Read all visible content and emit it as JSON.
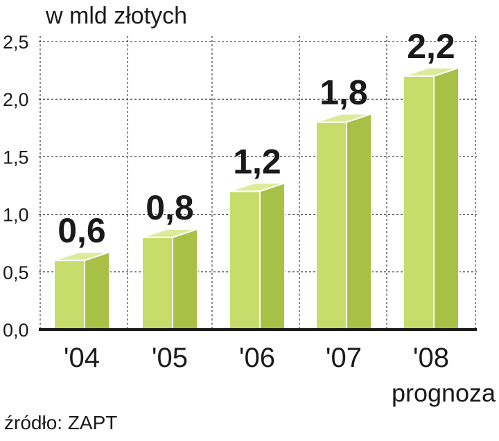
{
  "chart_data": {
    "type": "bar",
    "title": "",
    "unit_label": "w mld złotych",
    "categories": [
      "'04",
      "'05",
      "'06",
      "'07",
      "'08"
    ],
    "values": [
      0.6,
      0.8,
      1.2,
      1.8,
      2.2
    ],
    "value_labels": [
      "0,6",
      "0,8",
      "1,2",
      "1,8",
      "2,2"
    ],
    "category_notes": [
      "",
      "",
      "",
      "",
      "prognoza"
    ],
    "ylim": [
      0,
      2.5
    ],
    "yticks": [
      0.0,
      0.5,
      1.0,
      1.5,
      2.0,
      2.5
    ],
    "ytick_labels": [
      "0,0",
      "0,5",
      "1,0",
      "1,5",
      "2,0",
      "2,5"
    ],
    "grid": true,
    "legend": "none",
    "colors": {
      "bar_front": "#c7dc6b",
      "bar_side": "#a9c046",
      "bar_top": "#dcea9a",
      "grid": "#1a1a1a",
      "axis": "#1a1a1a"
    },
    "source": "źródło: ZAPT"
  }
}
